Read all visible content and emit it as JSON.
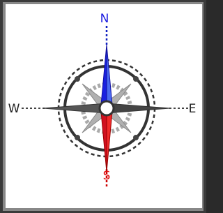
{
  "compass": {
    "labels": {
      "north": "N",
      "east": "E",
      "south": "S",
      "west": "W"
    }
  }
}
